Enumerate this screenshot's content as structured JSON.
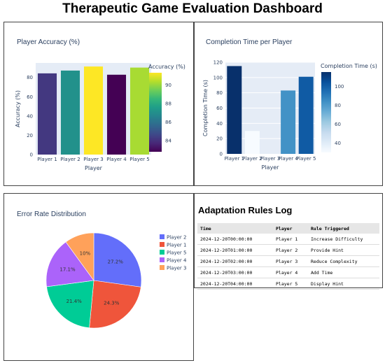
{
  "dashboard": {
    "title": "Therapeutic Game Evaluation Dashboard"
  },
  "chart_data": [
    {
      "type": "bar",
      "title": "Player Accuracy (%)",
      "xlabel": "Player",
      "ylabel": "Accuracy (%)",
      "categories": [
        "Player 1",
        "Player 2",
        "Player 3",
        "Player 4",
        "Player 5"
      ],
      "values": [
        84.2,
        87.1,
        91.3,
        82.8,
        90.2
      ],
      "ylim": [
        0,
        95
      ],
      "yticks": [
        0,
        20,
        40,
        60,
        80
      ],
      "colorscale": "Viridis",
      "colorbar": {
        "title": "Accuracy (%)",
        "range": [
          82.8,
          91.3
        ],
        "ticks": [
          84,
          86,
          88,
          90
        ]
      },
      "grid": false
    },
    {
      "type": "bar",
      "title": "Completion Time per Player",
      "xlabel": "Player",
      "ylabel": "Completion Time (s)",
      "categories": [
        "Player 1",
        "Player 2",
        "Player 3",
        "Player 4",
        "Player 5"
      ],
      "values": [
        115,
        30,
        0,
        83,
        101
      ],
      "ylim": [
        0,
        120
      ],
      "yticks": [
        0,
        20,
        40,
        60,
        80,
        100,
        120
      ],
      "colorscale": "Blues",
      "colorbar": {
        "title": "Completion Time (s)",
        "range": [
          30,
          115
        ],
        "ticks": [
          40,
          60,
          80,
          100
        ]
      },
      "grid": true
    },
    {
      "type": "pie",
      "title": "Error Rate Distribution",
      "labels": [
        "Player 2",
        "Player 1",
        "Player 5",
        "Player 4",
        "Player 3"
      ],
      "values": [
        27.2,
        24.3,
        21.4,
        17.1,
        10
      ],
      "display_labels": [
        "27.2%",
        "24.3%",
        "21.4%",
        "17.1%",
        "10%"
      ],
      "colors": [
        "#636efa",
        "#ef553b",
        "#00cc96",
        "#ab63fa",
        "#ffa15a"
      ],
      "legend": "right"
    }
  ],
  "log": {
    "title": "Adaptation Rules Log",
    "columns": [
      "Time",
      "Player",
      "Rule Triggered"
    ],
    "rows": [
      [
        "2024-12-20T00:00:00",
        "Player 1",
        "Increase Difficulty"
      ],
      [
        "2024-12-20T01:00:00",
        "Player 2",
        "Provide Hint"
      ],
      [
        "2024-12-20T02:00:00",
        "Player 3",
        "Reduce Complexity"
      ],
      [
        "2024-12-20T03:00:00",
        "Player 4",
        "Add Time"
      ],
      [
        "2024-12-20T04:00:00",
        "Player 5",
        "Display Hint"
      ]
    ]
  }
}
